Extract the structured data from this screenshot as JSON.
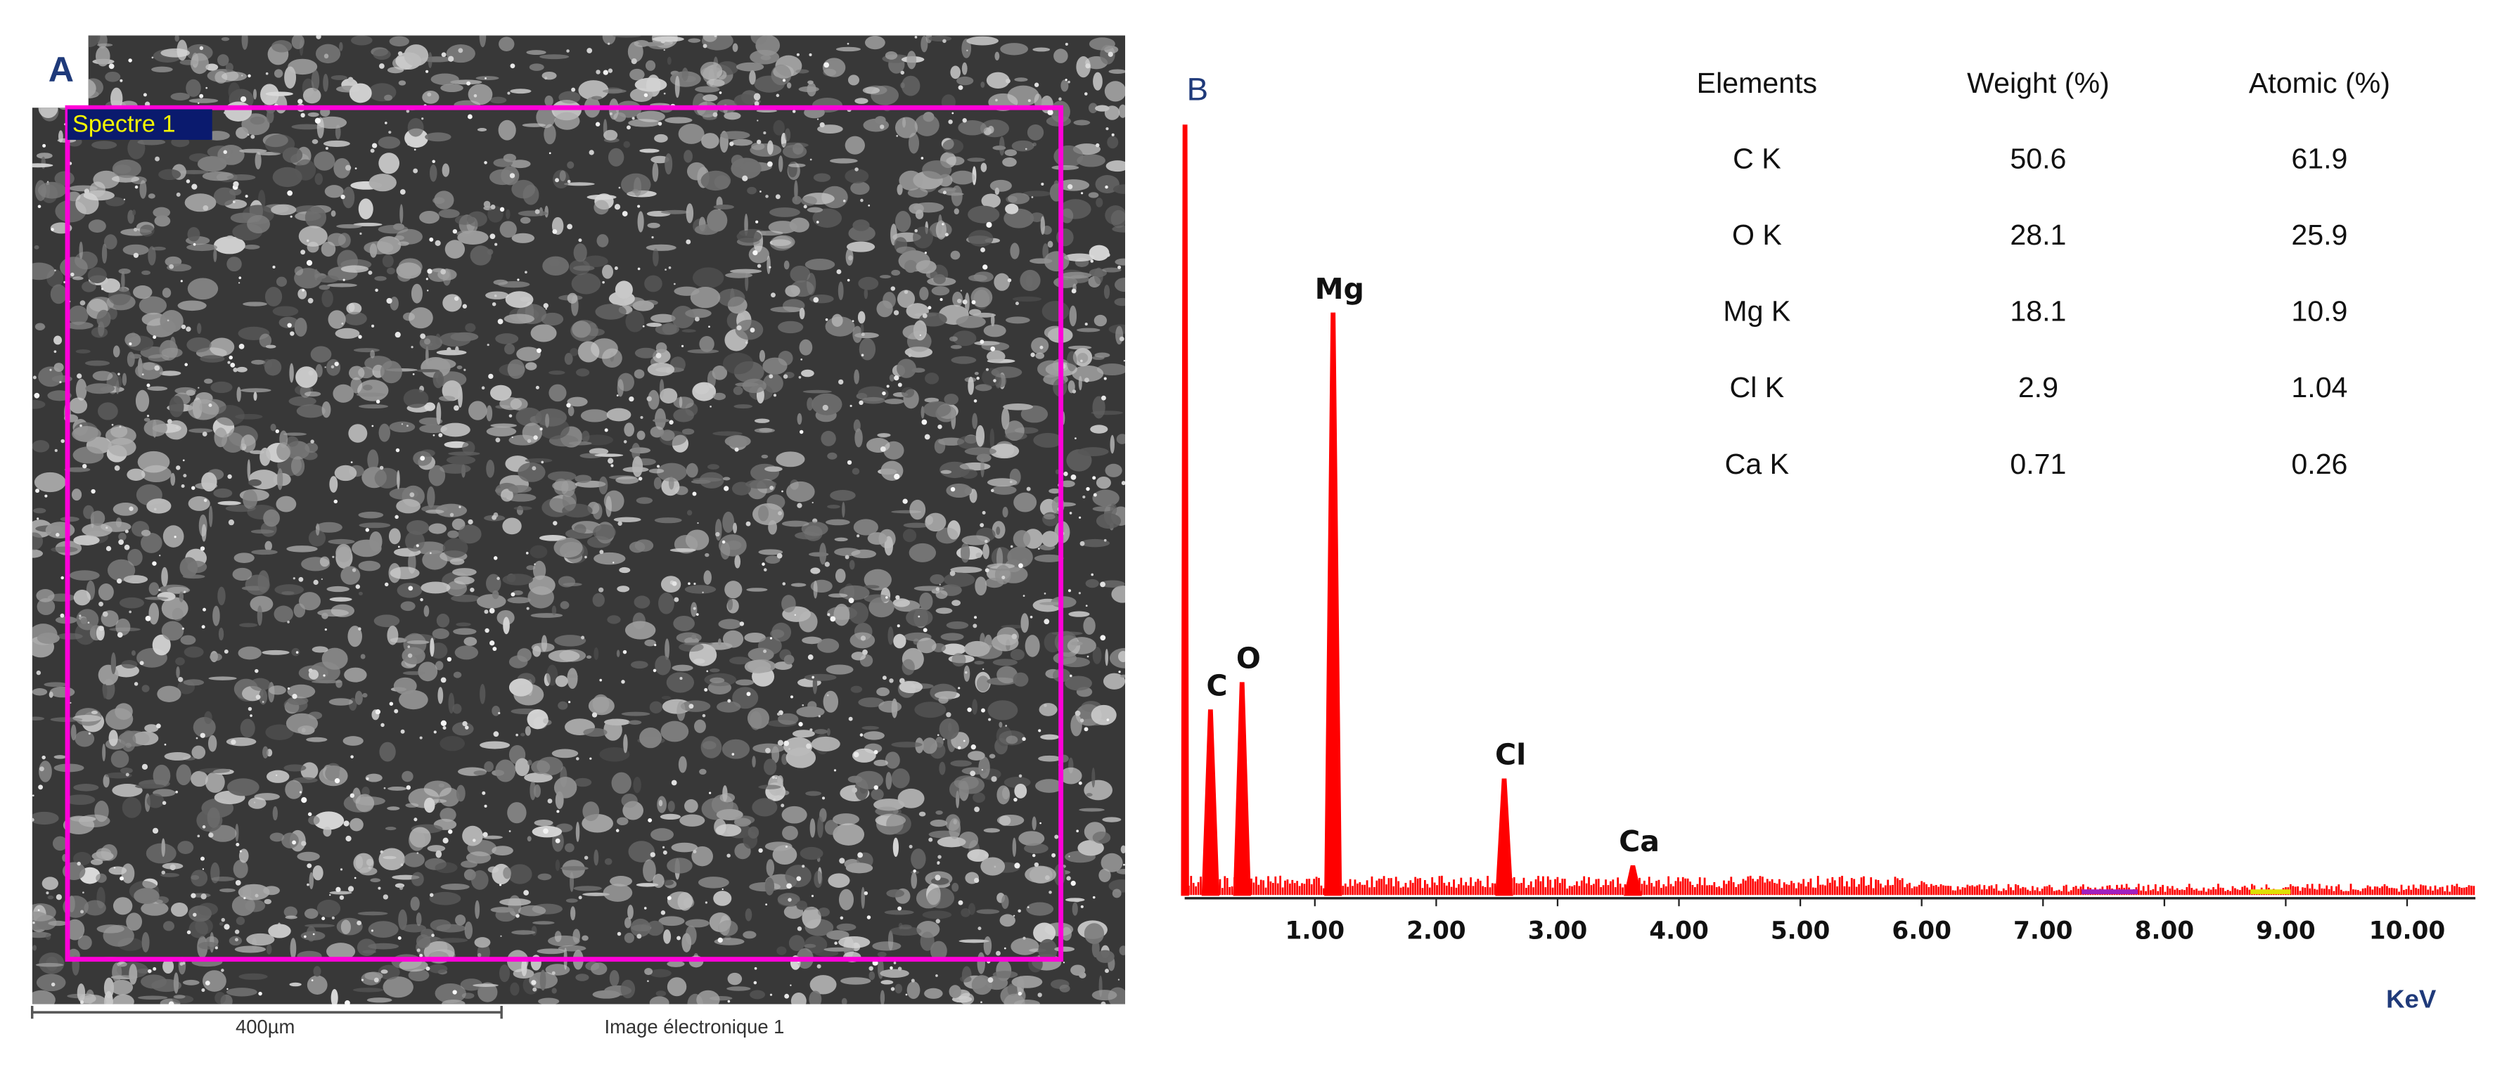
{
  "panel_a": {
    "label": "A",
    "region_label": "Spectre 1",
    "scale_bar": "400µm",
    "image_caption": "Image électronique 1"
  },
  "chart_data": {
    "type": "spectrum",
    "panel_label": "B",
    "x_label": "KeV",
    "xlim": [
      0,
      10.56
    ],
    "xticks": [
      {
        "value": 1,
        "label": "1.00"
      },
      {
        "value": 2,
        "label": "2.00"
      },
      {
        "value": 3,
        "label": "3.00"
      },
      {
        "value": 4,
        "label": "4.00"
      },
      {
        "value": 5,
        "label": "5.00"
      },
      {
        "value": 6,
        "label": "6.00"
      },
      {
        "value": 7,
        "label": "7.00"
      },
      {
        "value": 8,
        "label": "8.00"
      },
      {
        "value": 9,
        "label": "9.00"
      },
      {
        "value": 10,
        "label": "10.00"
      }
    ],
    "color": "#ff0000",
    "x": [
      -0.07,
      0.14,
      0.4,
      1.15,
      2.56,
      3.62
    ],
    "values": [
      479,
      115,
      132,
      362,
      72,
      18
    ],
    "categories": [
      null,
      "C",
      "O",
      "Mg",
      "Cl",
      "Ca"
    ]
  },
  "table": {
    "header": [
      "Elements",
      "Weight (%)",
      "Atomic (%)"
    ],
    "rows": [
      [
        "C K",
        50.6,
        61.9
      ],
      [
        "O K",
        28.1,
        25.9
      ],
      [
        "Mg K",
        18.1,
        10.9
      ],
      [
        "Cl K",
        2.9,
        1.04
      ],
      [
        "Ca K",
        0.71,
        0.26
      ]
    ]
  }
}
